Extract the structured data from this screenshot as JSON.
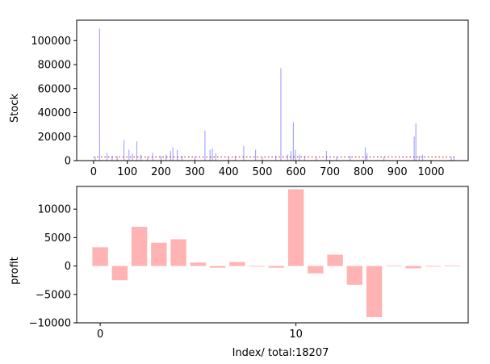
{
  "chart_data": [
    {
      "type": "bar",
      "ylabel": "Stock",
      "xlim": [
        -50,
        1110
      ],
      "ylim": [
        0,
        117000
      ],
      "xticks": [
        0,
        100,
        200,
        300,
        400,
        500,
        600,
        700,
        800,
        900,
        1000
      ],
      "yticks": [
        0,
        20000,
        40000,
        60000,
        80000,
        100000
      ],
      "grid": false,
      "colors": {
        "bars": "#0000ff",
        "reference_line": "#cc0000"
      },
      "reference_line": {
        "value": 3000,
        "style": "dotted"
      },
      "spikes": [
        {
          "x": 5,
          "value": 3000
        },
        {
          "x": 18,
          "value": 110000
        },
        {
          "x": 40,
          "value": 6000
        },
        {
          "x": 55,
          "value": 4000
        },
        {
          "x": 70,
          "value": 3500
        },
        {
          "x": 90,
          "value": 17000
        },
        {
          "x": 105,
          "value": 9000
        },
        {
          "x": 115,
          "value": 6000
        },
        {
          "x": 128,
          "value": 16000
        },
        {
          "x": 140,
          "value": 5000
        },
        {
          "x": 160,
          "value": 3000
        },
        {
          "x": 175,
          "value": 6500
        },
        {
          "x": 200,
          "value": 4000
        },
        {
          "x": 215,
          "value": 5000
        },
        {
          "x": 228,
          "value": 8000
        },
        {
          "x": 235,
          "value": 11000
        },
        {
          "x": 248,
          "value": 9000
        },
        {
          "x": 262,
          "value": 4000
        },
        {
          "x": 300,
          "value": 3000
        },
        {
          "x": 330,
          "value": 25000
        },
        {
          "x": 345,
          "value": 9000
        },
        {
          "x": 352,
          "value": 10000
        },
        {
          "x": 362,
          "value": 6000
        },
        {
          "x": 400,
          "value": 3000
        },
        {
          "x": 420,
          "value": 4000
        },
        {
          "x": 445,
          "value": 12000
        },
        {
          "x": 480,
          "value": 9000
        },
        {
          "x": 500,
          "value": 3000
        },
        {
          "x": 540,
          "value": 4000
        },
        {
          "x": 555,
          "value": 77000
        },
        {
          "x": 575,
          "value": 5000
        },
        {
          "x": 585,
          "value": 8000
        },
        {
          "x": 592,
          "value": 32000
        },
        {
          "x": 598,
          "value": 9000
        },
        {
          "x": 610,
          "value": 5000
        },
        {
          "x": 625,
          "value": 4000
        },
        {
          "x": 660,
          "value": 3000
        },
        {
          "x": 690,
          "value": 8000
        },
        {
          "x": 720,
          "value": 3000
        },
        {
          "x": 760,
          "value": 4000
        },
        {
          "x": 805,
          "value": 11000
        },
        {
          "x": 810,
          "value": 6000
        },
        {
          "x": 860,
          "value": 3000
        },
        {
          "x": 950,
          "value": 20000
        },
        {
          "x": 955,
          "value": 31000
        },
        {
          "x": 965,
          "value": 4000
        },
        {
          "x": 975,
          "value": 5000
        },
        {
          "x": 1060,
          "value": 3000
        },
        {
          "x": 1068,
          "value": 2500
        }
      ]
    },
    {
      "type": "bar",
      "ylabel": "profit",
      "xlabel": "Index/ total:18207",
      "xlim": [
        -1.2,
        18.8
      ],
      "ylim": [
        -10000,
        14000
      ],
      "xticks": [
        0,
        10
      ],
      "yticks": [
        -10000,
        -5000,
        0,
        5000,
        10000
      ],
      "grid": false,
      "colors": {
        "bars": "#ffb3b3"
      },
      "categories": [
        0,
        1,
        2,
        3,
        4,
        5,
        6,
        7,
        8,
        9,
        10,
        11,
        12,
        13,
        14,
        15,
        16,
        17,
        18
      ],
      "values": [
        3300,
        -2500,
        6900,
        4100,
        4700,
        600,
        -300,
        700,
        -100,
        -300,
        13500,
        -1300,
        2000,
        -3300,
        -9000,
        100,
        -400,
        0,
        100
      ]
    }
  ]
}
